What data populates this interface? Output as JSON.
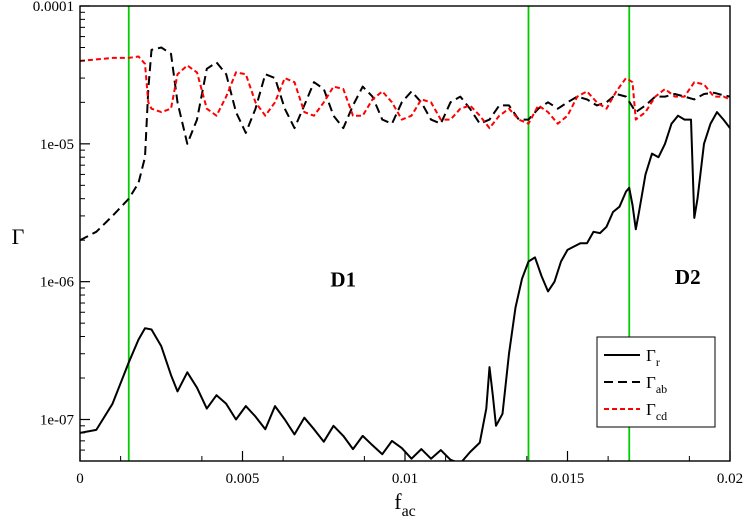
{
  "chart_data": {
    "type": "line",
    "xlabel": {
      "main": "f",
      "sub": "ac"
    },
    "ylabel": "Γ",
    "xlim": [
      0,
      0.02
    ],
    "ylim": [
      5e-08,
      0.0001
    ],
    "yscale": "log",
    "grid": false,
    "legend_position": "bottom-right",
    "x_ticks": [
      {
        "value": 0,
        "label": "0"
      },
      {
        "value": 0.005,
        "label": "0.005"
      },
      {
        "value": 0.01,
        "label": "0.01"
      },
      {
        "value": 0.015,
        "label": "0.015"
      },
      {
        "value": 0.02,
        "label": "0.02"
      }
    ],
    "y_ticks": [
      {
        "value": 1e-07,
        "label": "1e-07"
      },
      {
        "value": 1e-06,
        "label": "1e-06"
      },
      {
        "value": 1e-05,
        "label": "1e-05"
      },
      {
        "value": 0.0001,
        "label": "0.0001"
      }
    ],
    "vertical_lines": [
      {
        "x": 0.0015,
        "color": "#00cc00"
      },
      {
        "x": 0.0138,
        "color": "#00cc00"
      },
      {
        "x": 0.0169,
        "color": "#00cc00"
      }
    ],
    "annotations": [
      {
        "text": "D1",
        "x": 0.0081,
        "y": 9.2e-07
      },
      {
        "text": "D2",
        "x": 0.0187,
        "y": 9.6e-07
      }
    ],
    "series": [
      {
        "main": "Γ",
        "sub": "r",
        "color": "#000000",
        "dash": "solid",
        "x": [
          0,
          0.0005,
          0.001,
          0.0015,
          0.0018,
          0.002,
          0.0022,
          0.0025,
          0.0028,
          0.003,
          0.0033,
          0.0036,
          0.0039,
          0.0042,
          0.0045,
          0.0048,
          0.0051,
          0.0054,
          0.0057,
          0.006,
          0.0063,
          0.0066,
          0.0069,
          0.0072,
          0.0075,
          0.0078,
          0.0081,
          0.0084,
          0.0087,
          0.009,
          0.0093,
          0.0096,
          0.0099,
          0.0102,
          0.0105,
          0.0108,
          0.0111,
          0.0114,
          0.0117,
          0.012,
          0.0123,
          0.0125,
          0.0126,
          0.0127,
          0.0128,
          0.013,
          0.0132,
          0.0134,
          0.0136,
          0.0138,
          0.014,
          0.0142,
          0.0144,
          0.0146,
          0.0148,
          0.015,
          0.0152,
          0.0154,
          0.0156,
          0.0158,
          0.016,
          0.0162,
          0.0164,
          0.0166,
          0.0168,
          0.0169,
          0.017,
          0.0171,
          0.0172,
          0.0174,
          0.0176,
          0.0178,
          0.018,
          0.0182,
          0.0184,
          0.0186,
          0.0188,
          0.0189,
          0.019,
          0.0192,
          0.0194,
          0.0196,
          0.0198,
          0.02
        ],
        "y": [
          8e-08,
          8.4e-08,
          1.3e-07,
          2.6e-07,
          3.8e-07,
          4.6e-07,
          4.5e-07,
          3.4e-07,
          2.1e-07,
          1.6e-07,
          2.2e-07,
          1.7e-07,
          1.2e-07,
          1.5e-07,
          1.3e-07,
          1e-07,
          1.25e-07,
          1.05e-07,
          8.5e-08,
          1.25e-07,
          1e-07,
          7.8e-08,
          1.03e-07,
          8.5e-08,
          6.9e-08,
          9e-08,
          7.6e-08,
          6.1e-08,
          7.6e-08,
          6.5e-08,
          5.6e-08,
          7e-08,
          6.2e-08,
          5.2e-08,
          6.1e-08,
          5.2e-08,
          6e-08,
          5.1e-08,
          4.8e-08,
          5.8e-08,
          6.8e-08,
          1.2e-07,
          2.4e-07,
          1.5e-07,
          9e-08,
          1.1e-07,
          3e-07,
          6.5e-07,
          1.05e-06,
          1.4e-06,
          1.5e-06,
          1.1e-06,
          8.5e-07,
          1e-06,
          1.4e-06,
          1.7e-06,
          1.8e-06,
          1.9e-06,
          1.9e-06,
          2.3e-06,
          2.25e-06,
          2.5e-06,
          3.2e-06,
          3.5e-06,
          4.5e-06,
          4.8e-06,
          3.6e-06,
          2.4e-06,
          3.2e-06,
          6e-06,
          8.5e-06,
          8e-06,
          1e-05,
          1.4e-05,
          1.6e-05,
          1.5e-05,
          1.5e-05,
          2.9e-06,
          4e-06,
          1e-05,
          1.4e-05,
          1.7e-05,
          1.5e-05,
          1.3e-05
        ]
      },
      {
        "main": "Γ",
        "sub": "ab",
        "color": "#000000",
        "dash": "long",
        "x": [
          0,
          0.0005,
          0.001,
          0.0015,
          0.0018,
          0.002,
          0.0021,
          0.0022,
          0.0025,
          0.0028,
          0.003,
          0.0033,
          0.0036,
          0.0039,
          0.0042,
          0.0045,
          0.0048,
          0.0051,
          0.0054,
          0.0057,
          0.006,
          0.0063,
          0.0066,
          0.0069,
          0.0072,
          0.0075,
          0.0078,
          0.0081,
          0.0084,
          0.0087,
          0.009,
          0.0093,
          0.0096,
          0.0099,
          0.0102,
          0.0105,
          0.0108,
          0.0111,
          0.0114,
          0.0117,
          0.012,
          0.0123,
          0.0126,
          0.0129,
          0.0132,
          0.0135,
          0.0138,
          0.0141,
          0.0144,
          0.0147,
          0.015,
          0.0153,
          0.0156,
          0.0159,
          0.0162,
          0.0165,
          0.0168,
          0.0171,
          0.0174,
          0.0177,
          0.018,
          0.0183,
          0.0186,
          0.0189,
          0.0192,
          0.0195,
          0.0198,
          0.02
        ],
        "y": [
          2e-06,
          2.3e-06,
          3e-06,
          4e-06,
          5.2e-06,
          8e-06,
          2.5e-05,
          4.8e-05,
          5e-05,
          4.5e-05,
          2e-05,
          1e-05,
          1.5e-05,
          3.5e-05,
          3.9e-05,
          3.2e-05,
          1.7e-05,
          1.2e-05,
          1.8e-05,
          3.2e-05,
          3e-05,
          1.8e-05,
          1.3e-05,
          1.9e-05,
          2.8e-05,
          2.5e-05,
          1.6e-05,
          1.3e-05,
          1.9e-05,
          2.6e-05,
          2.2e-05,
          1.5e-05,
          1.4e-05,
          2e-05,
          2.4e-05,
          2e-05,
          1.5e-05,
          1.4e-05,
          2e-05,
          2.2e-05,
          1.8e-05,
          1.4e-05,
          1.5e-05,
          1.9e-05,
          1.9e-05,
          1.5e-05,
          1.5e-05,
          1.8e-05,
          2e-05,
          1.8e-05,
          2e-05,
          2.2e-05,
          2.1e-05,
          1.9e-05,
          2e-05,
          2.3e-05,
          2.2e-05,
          1.7e-05,
          1.9e-05,
          2.2e-05,
          2.2e-05,
          2.3e-05,
          2.2e-05,
          2.1e-05,
          2.3e-05,
          2.35e-05,
          2.25e-05,
          2.2e-05
        ]
      },
      {
        "main": "Γ",
        "sub": "cd",
        "color": "#ff0000",
        "dash": "short",
        "x": [
          0,
          0.0005,
          0.001,
          0.0015,
          0.0018,
          0.002,
          0.0021,
          0.0022,
          0.0025,
          0.0028,
          0.003,
          0.0033,
          0.0036,
          0.0039,
          0.0042,
          0.0045,
          0.0048,
          0.0051,
          0.0054,
          0.0057,
          0.006,
          0.0063,
          0.0066,
          0.0069,
          0.0072,
          0.0075,
          0.0078,
          0.0081,
          0.0084,
          0.0087,
          0.009,
          0.0093,
          0.0096,
          0.0099,
          0.0102,
          0.0105,
          0.0108,
          0.0111,
          0.0114,
          0.0117,
          0.012,
          0.0123,
          0.0126,
          0.0129,
          0.0132,
          0.0135,
          0.0138,
          0.0141,
          0.0144,
          0.0147,
          0.015,
          0.0153,
          0.0156,
          0.0159,
          0.0162,
          0.0165,
          0.0168,
          0.017,
          0.0171,
          0.0174,
          0.0177,
          0.018,
          0.0183,
          0.0186,
          0.0189,
          0.0192,
          0.0195,
          0.0198,
          0.02
        ],
        "y": [
          4e-05,
          4.1e-05,
          4.2e-05,
          4.2e-05,
          4.3e-05,
          3.8e-05,
          2e-05,
          1.8e-05,
          1.7e-05,
          1.8e-05,
          3.2e-05,
          3.7e-05,
          3.3e-05,
          1.8e-05,
          1.6e-05,
          2.2e-05,
          3.3e-05,
          3.2e-05,
          2e-05,
          1.6e-05,
          2e-05,
          3e-05,
          2.8e-05,
          1.7e-05,
          1.6e-05,
          2e-05,
          2.6e-05,
          2.5e-05,
          1.6e-05,
          1.6e-05,
          2.1e-05,
          2.4e-05,
          2e-05,
          1.5e-05,
          1.6e-05,
          2.1e-05,
          2e-05,
          1.5e-05,
          1.5e-05,
          1.8e-05,
          1.9e-05,
          1.6e-05,
          1.3e-05,
          1.6e-05,
          1.8e-05,
          1.5e-05,
          1.4e-05,
          1.9e-05,
          1.7e-05,
          1.4e-05,
          1.6e-05,
          2.2e-05,
          2.4e-05,
          2e-05,
          1.8e-05,
          2.4e-05,
          3e-05,
          2.8e-05,
          1.5e-05,
          1.7e-05,
          2.2e-05,
          2.5e-05,
          2.2e-05,
          2.2e-05,
          2.8e-05,
          2.7e-05,
          2.2e-05,
          2.2e-05,
          2.1e-05
        ]
      }
    ]
  }
}
